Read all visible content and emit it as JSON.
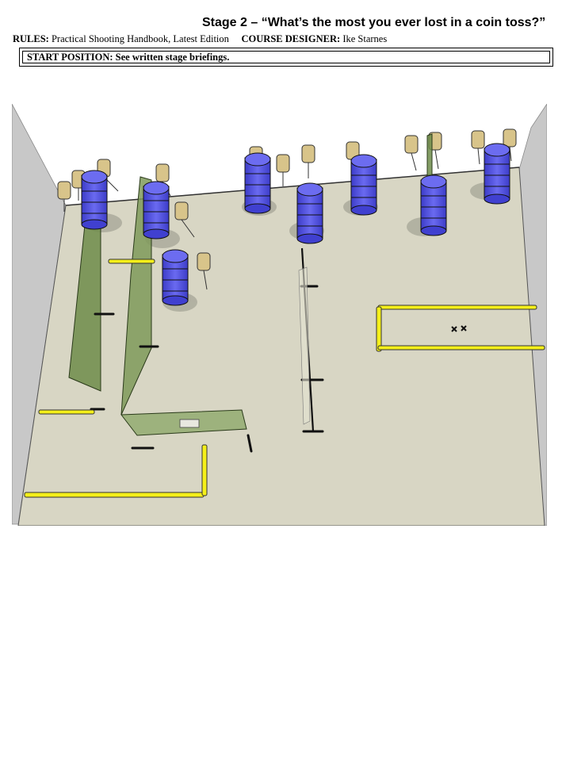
{
  "header": {
    "title": "Stage 2 – “What’s the most you ever lost in a coin toss?”",
    "rules_label": "RULES:",
    "rules_value": "Practical Shooting Handbook, Latest Edition",
    "designer_label": "COURSE DESIGNER:",
    "designer_value": "Ike Starnes",
    "start_label": "START POSITION:",
    "start_value": "See written stage briefings."
  },
  "colors": {
    "floor": "#d8d6c4",
    "wall": "#c9c9c9",
    "barrel": "#5a5ae6",
    "panel": "#7f9a5a",
    "fault_line": "#f4ef1a",
    "target": "#d8c48a"
  },
  "diagram": {
    "barrel_stacks": 8,
    "targets": 14,
    "start_mark": "× ×"
  }
}
